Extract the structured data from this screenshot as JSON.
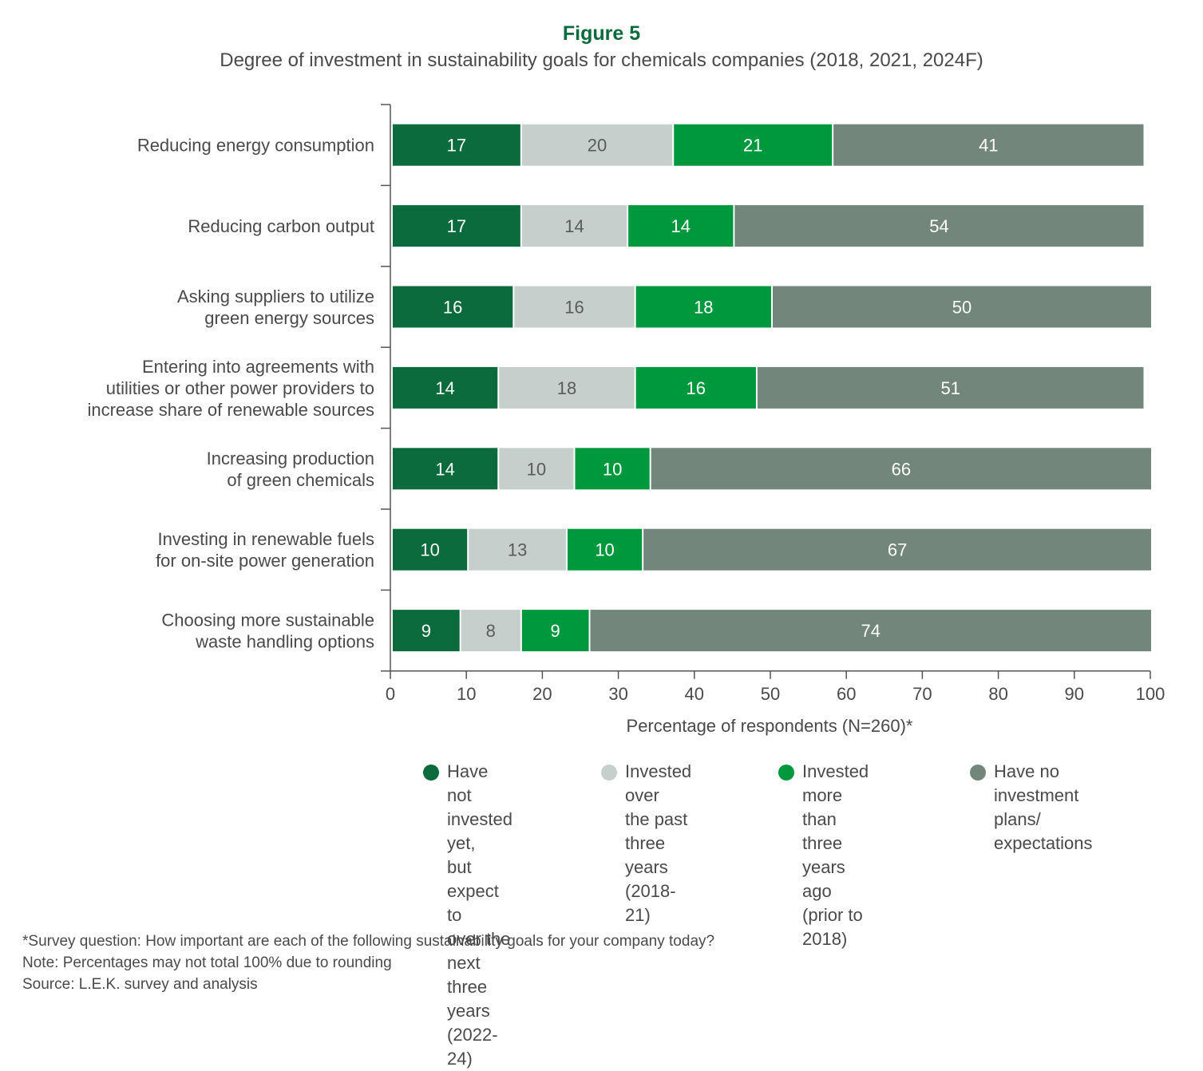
{
  "figure_label": "Figure 5",
  "chart_data": {
    "type": "bar",
    "orientation": "horizontal",
    "stacked": true,
    "title": "Degree of investment in sustainability goals for chemicals companies (2018, 2021, 2024F)",
    "xlabel": "Percentage of respondents (N=260)*",
    "ylabel": "",
    "xlim": [
      0,
      100
    ],
    "xticks": [
      "0",
      "10",
      "20",
      "30",
      "40",
      "50",
      "60",
      "70",
      "80",
      "90",
      "100"
    ],
    "grid": false,
    "legend_position": "bottom",
    "categories": [
      "Reducing energy consumption",
      "Reducing carbon output",
      "Asking suppliers to utilize\ngreen energy sources",
      "Entering into agreements with\nutilities or other power providers to\nincrease share of renewable sources",
      "Increasing production\nof green chemicals",
      "Investing in renewable fuels\nfor on-site power generation",
      "Choosing more sustainable\nwaste handling options"
    ],
    "series": [
      {
        "name": "Have not invested yet, but expect to over the next three years (2022-24)",
        "legend_label": "Have not\ninvested yet,\nbut expect to\nover the next\nthree years\n(2022-24)",
        "color": "#0b6b3c",
        "text_color": "#ffffff",
        "values": [
          17,
          17,
          16,
          14,
          14,
          10,
          9
        ]
      },
      {
        "name": "Invested over the past three years (2018-21)",
        "legend_label": "Invested over\nthe past\nthree years\n(2018-21)",
        "color": "#c7cfcc",
        "text_color": "#5a5a5a",
        "values": [
          20,
          14,
          16,
          18,
          10,
          13,
          8
        ]
      },
      {
        "name": "Invested more than three years ago (prior to 2018)",
        "legend_label": "Invested more\nthan three\nyears ago\n(prior to 2018)",
        "color": "#00983d",
        "text_color": "#ffffff",
        "values": [
          21,
          14,
          18,
          16,
          10,
          10,
          9
        ]
      },
      {
        "name": "Have no investment plans/ expectations",
        "legend_label": "Have no\ninvestment\nplans/\nexpectations",
        "color": "#72867b",
        "text_color": "#ffffff",
        "values": [
          41,
          54,
          50,
          51,
          66,
          67,
          74
        ]
      }
    ]
  },
  "notes": [
    "*Survey question: How important are each of the following sustainability goals for your company today?",
    "Note: Percentages may not total 100% due to rounding",
    "Source: L.E.K. survey and analysis"
  ]
}
